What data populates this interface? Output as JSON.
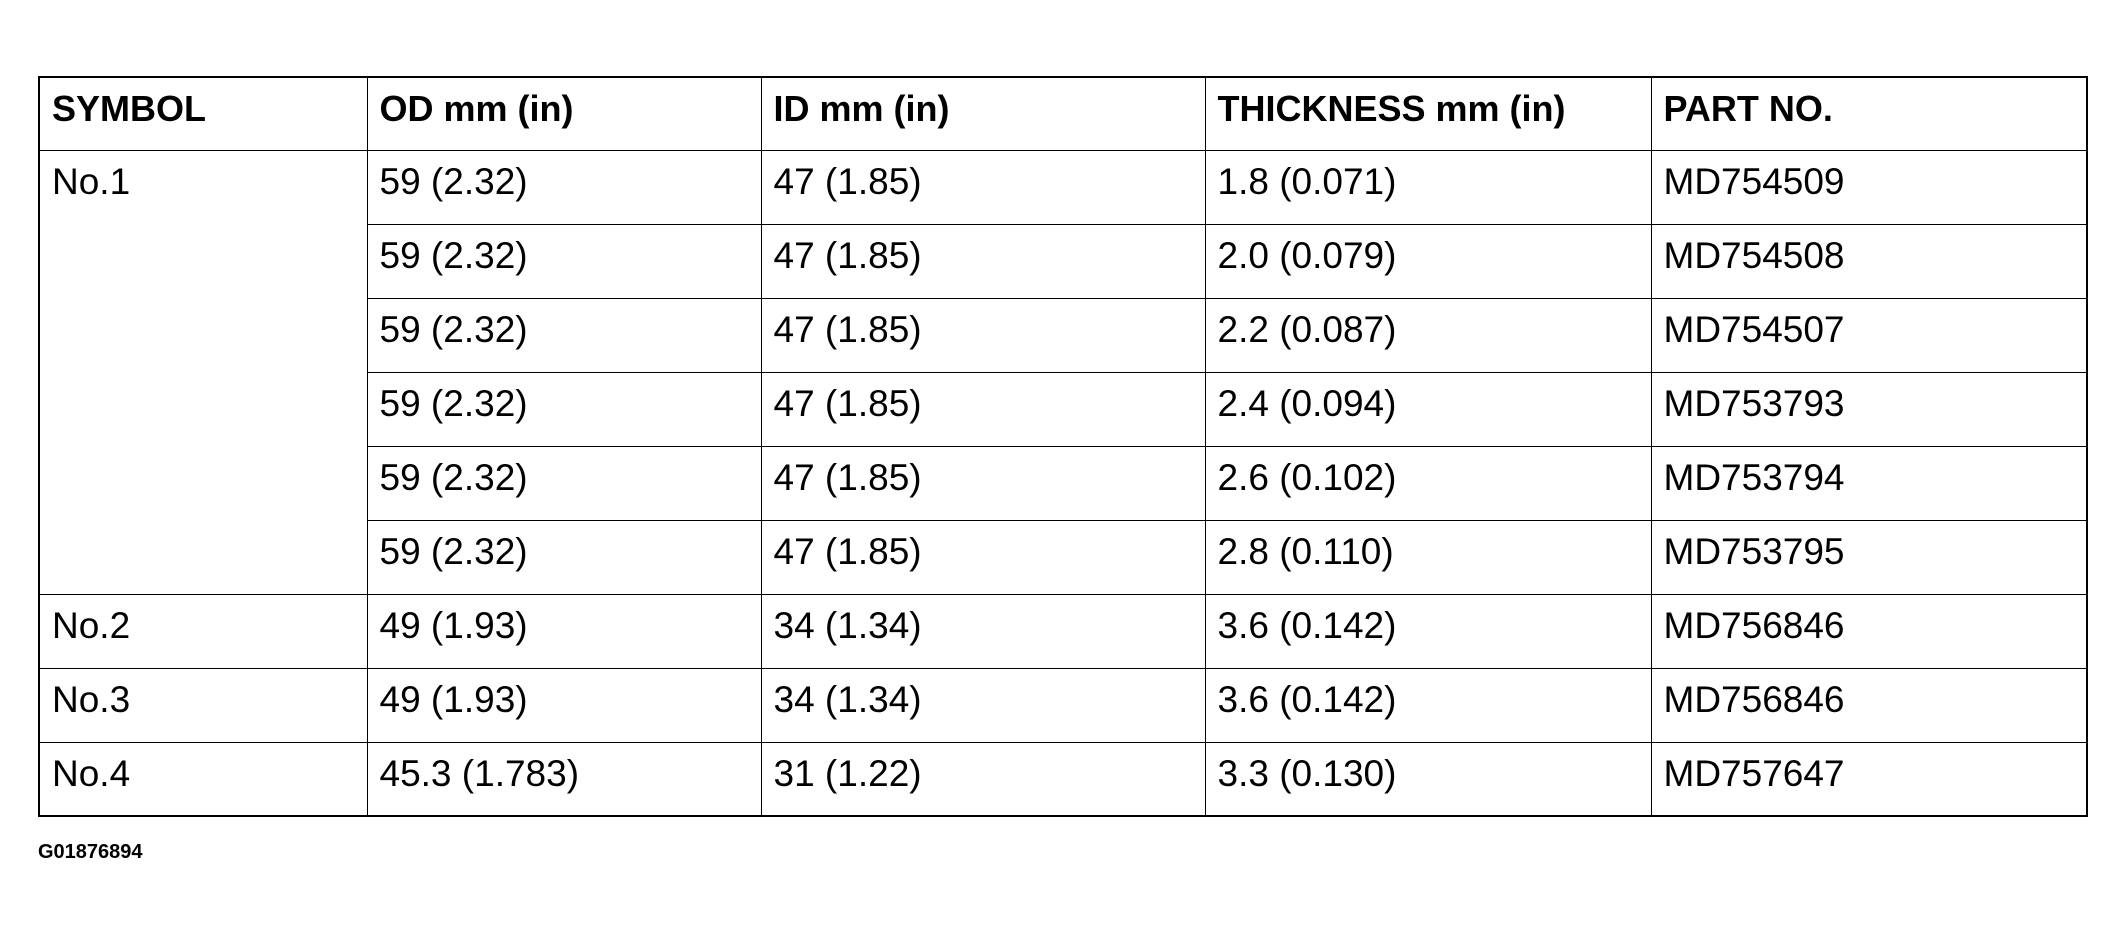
{
  "table": {
    "header": [
      "SYMBOL",
      "OD mm (in)",
      "ID mm (in)",
      "THICKNESS mm (in)",
      "PART NO."
    ],
    "rows": [
      [
        "No.1",
        "59 (2.32)",
        "47 (1.85)",
        "1.8 (0.071)",
        "MD754509"
      ],
      [
        "59 (2.32)",
        "47 (1.85)",
        "2.0 (0.079)",
        "MD754508"
      ],
      [
        "59 (2.32)",
        "47 (1.85)",
        "2.2 (0.087)",
        "MD754507"
      ],
      [
        "59 (2.32)",
        "47 (1.85)",
        "2.4 (0.094)",
        "MD753793"
      ],
      [
        "59 (2.32)",
        "47 (1.85)",
        "2.6 (0.102)",
        "MD753794"
      ],
      [
        "59 (2.32)",
        "47 (1.85)",
        "2.8 (0.110)",
        "MD753795"
      ],
      [
        "No.2",
        "49 (1.93)",
        "34 (1.34)",
        "3.6 (0.142)",
        "MD756846"
      ],
      [
        "No.3",
        "49 (1.93)",
        "34 (1.34)",
        "3.6 (0.142)",
        "MD756846"
      ],
      [
        "No.4",
        "45.3 (1.783)",
        "31 (1.22)",
        "3.3 (0.130)",
        "MD757647"
      ]
    ]
  },
  "figure_id": "G01876894"
}
